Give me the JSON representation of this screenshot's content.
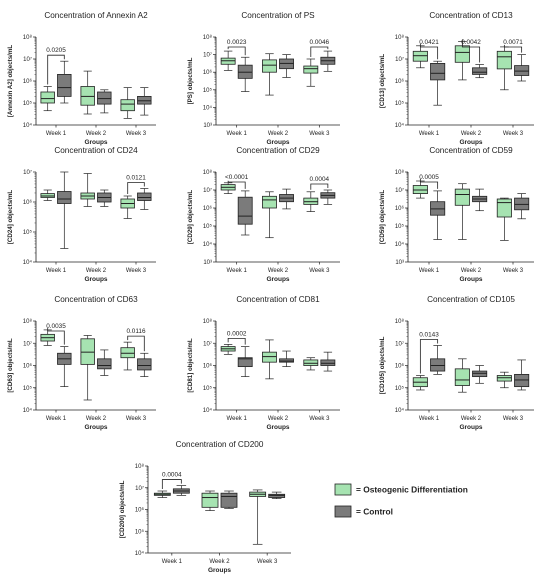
{
  "colors": {
    "osteo": "#a6e3b1",
    "control": "#7b7b7b",
    "stroke": "#222222"
  },
  "legend": {
    "osteo_label": "= Osteogenic Differentiation",
    "control_label": "= Control"
  },
  "chart_data": [
    {
      "type": "boxplot",
      "title": "Concentration of Annexin A2",
      "ylabel": "[Annexin A2] objects/mL",
      "xlabel": "Groups",
      "y_scale": "log",
      "ylim_exp": [
        4,
        8
      ],
      "y_tick_labels": [
        "10⁴",
        "10⁵",
        "10⁶",
        "10⁷",
        "10⁸"
      ],
      "categories": [
        "Week 1",
        "Week 2",
        "Week 3"
      ],
      "series": [
        {
          "group": "osteo",
          "boxes": [
            [
              4.65,
              5.0,
              5.2,
              5.5,
              5.75
            ],
            [
              4.5,
              4.9,
              5.3,
              5.75,
              6.45
            ],
            [
              4.3,
              4.65,
              4.95,
              5.15,
              5.7
            ]
          ]
        },
        {
          "group": "control",
          "boxes": [
            [
              5.0,
              5.3,
              5.7,
              6.3,
              6.9
            ],
            [
              4.55,
              4.95,
              5.2,
              5.5,
              5.6
            ],
            [
              4.45,
              4.95,
              5.1,
              5.3,
              5.7
            ]
          ]
        }
      ],
      "pvalues": [
        {
          "label": "0.0205",
          "category": 0
        }
      ]
    },
    {
      "type": "boxplot",
      "title": "Concentration of PS",
      "ylabel": "[PS] objects/mL",
      "xlabel": "Groups",
      "y_scale": "log",
      "ylim_exp": [
        3,
        8
      ],
      "y_tick_labels": [
        "10³",
        "10⁴",
        "10⁵",
        "10⁶",
        "10⁷",
        "10⁸"
      ],
      "categories": [
        "Week 1",
        "Week 2",
        "Week 3"
      ],
      "series": [
        {
          "group": "osteo",
          "boxes": [
            [
              6.1,
              6.45,
              6.65,
              6.8,
              7.2
            ],
            [
              4.7,
              6.0,
              6.4,
              6.7,
              7.05
            ],
            [
              5.2,
              5.95,
              6.2,
              6.35,
              6.75
            ]
          ]
        },
        {
          "group": "control",
          "boxes": [
            [
              4.9,
              5.65,
              6.0,
              6.4,
              6.85
            ],
            [
              5.7,
              6.2,
              6.5,
              6.75,
              7.0
            ],
            [
              6.05,
              6.45,
              6.65,
              6.85,
              7.2
            ]
          ]
        }
      ],
      "pvalues": [
        {
          "label": "0.0023",
          "category": 0
        },
        {
          "label": "0.0046",
          "category": 2
        }
      ]
    },
    {
      "type": "boxplot",
      "title": "Concentration of CD13",
      "ylabel": "[CD13] objects/mL",
      "xlabel": "Groups",
      "y_scale": "log",
      "ylim_exp": [
        4,
        8
      ],
      "y_tick_labels": [
        "10⁴",
        "10⁵",
        "10⁶",
        "10⁷",
        "10⁸"
      ],
      "categories": [
        "Week 1",
        "Week 2",
        "Week 3"
      ],
      "series": [
        {
          "group": "osteo",
          "boxes": [
            [
              6.6,
              6.9,
              7.15,
              7.35,
              7.6
            ],
            [
              6.05,
              6.85,
              7.3,
              7.6,
              7.8
            ],
            [
              5.6,
              6.55,
              7.1,
              7.35,
              7.55
            ]
          ]
        },
        {
          "group": "control",
          "boxes": [
            [
              4.9,
              6.05,
              6.35,
              6.8,
              6.9
            ],
            [
              6.15,
              6.3,
              6.4,
              6.6,
              6.75
            ],
            [
              6.0,
              6.25,
              6.45,
              6.7,
              7.2
            ]
          ]
        }
      ],
      "pvalues": [
        {
          "label": "0.0421",
          "category": 0
        },
        {
          "label": "0.0042",
          "category": 1
        },
        {
          "label": "0.0071",
          "category": 2
        }
      ]
    },
    {
      "type": "boxplot",
      "title": "Concentration of CD24",
      "ylabel": "[CD24] objects/mL",
      "xlabel": "Groups",
      "y_scale": "log",
      "ylim_exp": [
        4,
        7
      ],
      "y_tick_labels": [
        "10⁴",
        "10⁵",
        "10⁶",
        "10⁷"
      ],
      "categories": [
        "Week 1",
        "Week 2",
        "Week 3"
      ],
      "series": [
        {
          "group": "osteo",
          "boxes": [
            [
              6.05,
              6.15,
              6.2,
              6.28,
              6.4
            ],
            [
              5.85,
              6.1,
              6.2,
              6.3,
              6.95
            ],
            [
              5.45,
              5.8,
              5.95,
              6.1,
              6.2
            ]
          ]
        },
        {
          "group": "control",
          "boxes": [
            [
              4.45,
              5.95,
              6.1,
              6.35,
              7.0
            ],
            [
              5.85,
              6.0,
              6.15,
              6.3,
              6.4
            ],
            [
              5.75,
              6.05,
              6.15,
              6.3,
              6.45
            ]
          ]
        }
      ],
      "pvalues": [
        {
          "label": "0.0121",
          "category": 2
        }
      ]
    },
    {
      "type": "boxplot",
      "title": "Concentration of CD29",
      "ylabel": "[CD29] objects/mL",
      "xlabel": "Groups",
      "y_scale": "log",
      "ylim_exp": [
        3,
        8
      ],
      "y_tick_labels": [
        "10³",
        "10⁴",
        "10⁵",
        "10⁶",
        "10⁷",
        "10⁸"
      ],
      "categories": [
        "Week 1",
        "Week 2",
        "Week 3"
      ],
      "series": [
        {
          "group": "osteo",
          "boxes": [
            [
              6.8,
              7.0,
              7.15,
              7.3,
              7.4
            ],
            [
              4.35,
              6.0,
              6.45,
              6.65,
              6.9
            ],
            [
              5.8,
              6.2,
              6.35,
              6.55,
              6.9
            ]
          ]
        },
        {
          "group": "control",
          "boxes": [
            [
              4.5,
              5.1,
              5.55,
              6.6,
              6.95
            ],
            [
              5.95,
              6.35,
              6.55,
              6.75,
              7.05
            ],
            [
              6.2,
              6.55,
              6.7,
              6.85,
              7.0
            ]
          ]
        }
      ],
      "pvalues": [
        {
          "label": "<0.0001",
          "category": 0
        },
        {
          "label": "0.0004",
          "category": 2
        }
      ]
    },
    {
      "type": "boxplot",
      "title": "Concentration of CD59",
      "ylabel": "[CD59] objects/mL",
      "xlabel": "Groups",
      "y_scale": "log",
      "ylim_exp": [
        3,
        8
      ],
      "y_tick_labels": [
        "10³",
        "10⁴",
        "10⁵",
        "10⁶",
        "10⁷",
        "10⁸"
      ],
      "categories": [
        "Week 1",
        "Week 2",
        "Week 3"
      ],
      "series": [
        {
          "group": "osteo",
          "boxes": [
            [
              6.55,
              6.8,
              7.0,
              7.25,
              7.5
            ],
            [
              4.25,
              6.15,
              6.75,
              7.05,
              7.35
            ],
            [
              4.2,
              5.5,
              6.3,
              6.5,
              6.55
            ]
          ]
        },
        {
          "group": "control",
          "boxes": [
            [
              4.25,
              5.6,
              5.95,
              6.35,
              6.95
            ],
            [
              5.85,
              6.35,
              6.5,
              6.65,
              7.05
            ],
            [
              5.4,
              5.9,
              6.2,
              6.55,
              6.8
            ]
          ]
        }
      ],
      "pvalues": [
        {
          "label": "0.0005",
          "category": 0
        }
      ]
    },
    {
      "type": "boxplot",
      "title": "Concentration of CD63",
      "ylabel": "[CD63] objects/mL",
      "xlabel": "Groups",
      "y_scale": "log",
      "ylim_exp": [
        4,
        8
      ],
      "y_tick_labels": [
        "10⁴",
        "10⁵",
        "10⁶",
        "10⁷",
        "10⁸"
      ],
      "categories": [
        "Week 1",
        "Week 2",
        "Week 3"
      ],
      "series": [
        {
          "group": "osteo",
          "boxes": [
            [
              6.9,
              7.1,
              7.25,
              7.4,
              7.6
            ],
            [
              4.45,
              6.05,
              6.6,
              7.2,
              7.35
            ],
            [
              5.8,
              6.35,
              6.55,
              6.8,
              7.05
            ]
          ]
        },
        {
          "group": "control",
          "boxes": [
            [
              5.05,
              6.05,
              6.3,
              6.55,
              6.85
            ],
            [
              5.55,
              5.85,
              6.0,
              6.3,
              6.7
            ],
            [
              5.5,
              5.8,
              6.0,
              6.3,
              6.55
            ]
          ]
        }
      ],
      "pvalues": [
        {
          "label": "0.0035",
          "category": 0
        },
        {
          "label": "0.0116",
          "category": 2
        }
      ]
    },
    {
      "type": "boxplot",
      "title": "Concentration of CD81",
      "ylabel": "[CD81] objects/mL",
      "xlabel": "Groups",
      "y_scale": "log",
      "ylim_exp": [
        4,
        8
      ],
      "y_tick_labels": [
        "10⁴",
        "10⁵",
        "10⁶",
        "10⁷",
        "10⁸"
      ],
      "categories": [
        "Week 1",
        "Week 2",
        "Week 3"
      ],
      "series": [
        {
          "group": "osteo",
          "boxes": [
            [
              6.5,
              6.65,
              6.75,
              6.85,
              6.95
            ],
            [
              5.4,
              6.15,
              6.4,
              6.6,
              7.15
            ],
            [
              5.8,
              6.0,
              6.1,
              6.25,
              6.35
            ]
          ]
        },
        {
          "group": "control",
          "boxes": [
            [
              5.5,
              5.95,
              6.3,
              6.35,
              6.85
            ],
            [
              5.95,
              6.15,
              6.2,
              6.3,
              6.65
            ],
            [
              5.75,
              6.0,
              6.1,
              6.25,
              6.6
            ]
          ]
        }
      ],
      "pvalues": [
        {
          "label": "0.0002",
          "category": 0
        }
      ]
    },
    {
      "type": "boxplot",
      "title": "Concentration of CD105",
      "ylabel": "[CD105] objects/mL",
      "xlabel": "Groups",
      "y_scale": "log",
      "ylim_exp": [
        4,
        8
      ],
      "y_tick_labels": [
        "10⁴",
        "10⁵",
        "10⁶",
        "10⁷",
        "10⁸"
      ],
      "categories": [
        "Week 1",
        "Week 2",
        "Week 3"
      ],
      "series": [
        {
          "group": "osteo",
          "boxes": [
            [
              4.9,
              5.05,
              5.25,
              5.45,
              5.55
            ],
            [
              4.8,
              5.1,
              5.35,
              5.85,
              6.3
            ],
            [
              5.0,
              5.3,
              5.45,
              5.55,
              5.7
            ]
          ]
        },
        {
          "group": "control",
          "boxes": [
            [
              5.6,
              5.75,
              6.0,
              6.3,
              6.9
            ],
            [
              5.2,
              5.5,
              5.65,
              5.75,
              6.0
            ],
            [
              4.9,
              5.05,
              5.35,
              5.6,
              6.25
            ]
          ]
        }
      ],
      "pvalues": [
        {
          "label": "0.0143",
          "category": 0
        }
      ]
    },
    {
      "type": "boxplot",
      "title": "Concentration of CD200",
      "ylabel": "[CD200] objects/mL",
      "xlabel": "Groups",
      "y_scale": "log",
      "ylim_exp": [
        4,
        8
      ],
      "y_tick_labels": [
        "10⁴",
        "10⁵",
        "10⁶",
        "10⁷",
        "10⁸"
      ],
      "categories": [
        "Week 1",
        "Week 2",
        "Week 3"
      ],
      "series": [
        {
          "group": "osteo",
          "boxes": [
            [
              6.55,
              6.65,
              6.7,
              6.75,
              6.85
            ],
            [
              5.95,
              6.1,
              6.55,
              6.75,
              6.85
            ],
            [
              4.4,
              6.6,
              6.7,
              6.8,
              6.9
            ]
          ]
        },
        {
          "group": "control",
          "boxes": [
            [
              6.65,
              6.75,
              6.85,
              6.95,
              7.1
            ],
            [
              6.05,
              6.1,
              6.6,
              6.75,
              6.85
            ],
            [
              6.5,
              6.55,
              6.65,
              6.7,
              6.8
            ]
          ]
        }
      ],
      "pvalues": [
        {
          "label": "0.0004",
          "category": 0
        }
      ]
    }
  ]
}
